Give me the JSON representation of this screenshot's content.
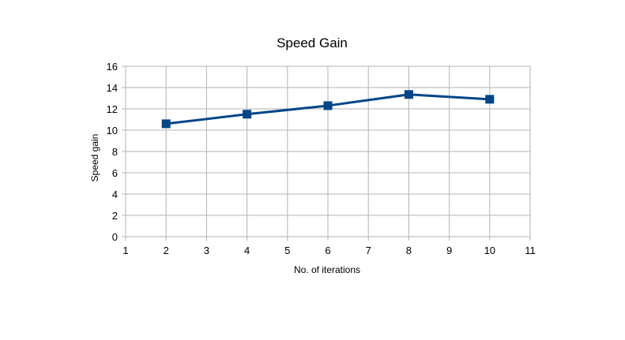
{
  "chart_data": {
    "type": "line",
    "title": "Speed Gain",
    "xlabel": "No. of iterations",
    "ylabel": "Speed gain",
    "xlim": [
      1,
      11
    ],
    "ylim": [
      0,
      16
    ],
    "x_ticks": [
      1,
      2,
      3,
      4,
      5,
      6,
      7,
      8,
      9,
      10,
      11
    ],
    "y_ticks": [
      0,
      2,
      4,
      6,
      8,
      10,
      12,
      14,
      16
    ],
    "grid": true,
    "legend": "none",
    "series": [
      {
        "color": "#004586",
        "marker": "square",
        "points": [
          {
            "x": 2,
            "y": 10.6
          },
          {
            "x": 4,
            "y": 11.5
          },
          {
            "x": 6,
            "y": 12.3
          },
          {
            "x": 8,
            "y": 13.35
          },
          {
            "x": 10,
            "y": 12.9
          }
        ]
      }
    ]
  }
}
